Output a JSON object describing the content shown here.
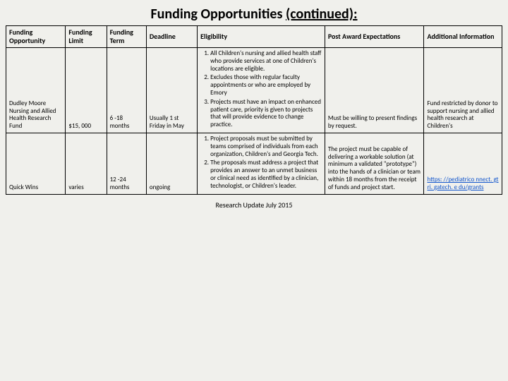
{
  "title_main": "Funding Opportunities ",
  "title_cont": "(continued):",
  "columns": {
    "c1": "Funding Opportunity",
    "c2": "Funding Limit",
    "c3": "Funding Term",
    "c4": "Deadline",
    "c5": "Eligibility",
    "c6": "Post  Award Expectations",
    "c7": "Additional Information"
  },
  "rows": [
    {
      "opportunity": "Dudley Moore Nursing and Allied Health Research Fund",
      "limit": "$15, 000",
      "term": "6 -18 months",
      "deadline": "Usually 1 st Friday in May",
      "eligibility": [
        "All Children's nursing and allied health staff who provide services at one of Children's locations are eligible.",
        "Excludes those with regular faculty appointments or who are employed by Emory",
        "Projects must have an impact on enhanced patient care, priority is given to projects that will provide evidence to change practice."
      ],
      "post": "Must be willing to present findings by request.",
      "additional": "Fund restricted by donor to support nursing and allied health research at Children's"
    },
    {
      "opportunity": "Quick Wins",
      "limit": "varies",
      "term": "12 -24 months",
      "deadline": "ongoing",
      "eligibility": [
        "Project proposals must be submitted by teams comprised of individuals from each organization, Children's and Georgia Tech.",
        "The proposals must address a project that provides an answer to an unmet business or clinical need as identified by a clinician, technologist, or Children's leader."
      ],
      "post": "The project must be capable of delivering a workable solution (at minimum a validated \"prototype\") into the hands of a clinician or team within 18 months from the receipt of funds and project start.",
      "additional_link": "https: //pediatrico nnect. gtri. gatech. e du/grants"
    }
  ],
  "footer": "Research Update July 2015"
}
